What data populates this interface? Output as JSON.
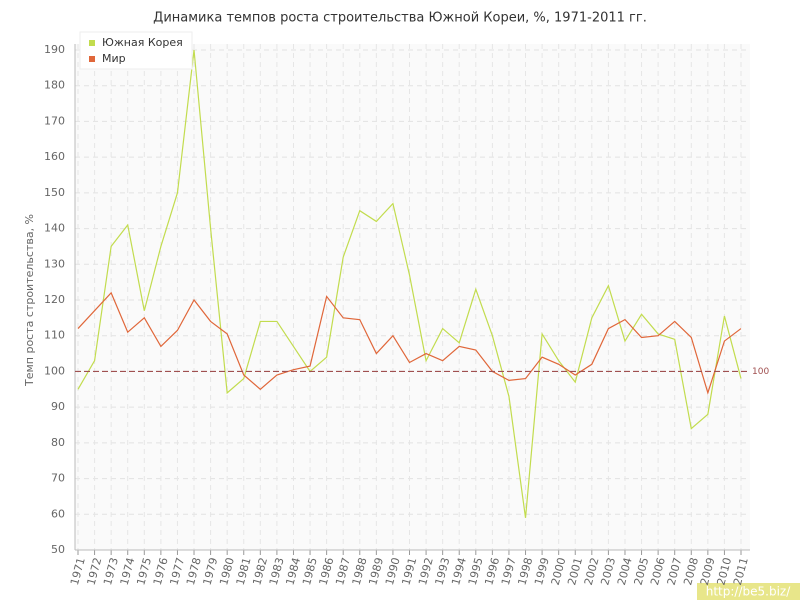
{
  "chart_data": {
    "type": "line",
    "title": "Динамика темпов роста строительства Южной Кореи, %, 1971-2011 гг.",
    "y_label": "Темп роста строительства, %",
    "categories": [
      "1971",
      "1972",
      "1973",
      "1974",
      "1975",
      "1976",
      "1977",
      "1978",
      "1979",
      "1980",
      "1981",
      "1982",
      "1983",
      "1984",
      "1985",
      "1986",
      "1987",
      "1988",
      "1989",
      "1990",
      "1991",
      "1992",
      "1993",
      "1994",
      "1995",
      "1996",
      "1997",
      "1998",
      "1999",
      "2000",
      "2001",
      "2002",
      "2003",
      "2004",
      "2005",
      "2006",
      "2007",
      "2008",
      "2009",
      "2010",
      "2011"
    ],
    "series": [
      {
        "name": "Южная Корея",
        "color": "#c2dc4e",
        "values": [
          95,
          103,
          135,
          141,
          117,
          135,
          150,
          190,
          140,
          94,
          98,
          114,
          114,
          107,
          100,
          104,
          132,
          145,
          142,
          147,
          127,
          103,
          112,
          108,
          123,
          110,
          93,
          59,
          110.5,
          103,
          97,
          115,
          124,
          108.5,
          116,
          110.5,
          109,
          84,
          88,
          115.5,
          98
        ]
      },
      {
        "name": "Мир",
        "color": "#e0673a",
        "values": [
          112,
          117,
          122,
          111,
          115,
          107,
          111.5,
          120,
          114,
          110.5,
          99,
          95,
          99,
          100.5,
          101.5,
          121,
          115,
          114.5,
          105,
          110,
          102.5,
          105,
          103,
          107,
          106,
          100,
          97.5,
          98,
          104,
          102,
          99,
          102,
          112,
          114.5,
          109.5,
          110,
          114,
          109.5,
          94,
          108.5,
          112
        ]
      }
    ],
    "ylim": [
      50,
      190
    ],
    "yticks": [
      50,
      60,
      70,
      80,
      90,
      100,
      110,
      120,
      130,
      140,
      150,
      160,
      170,
      180,
      190
    ],
    "grid": true,
    "legend": "top-left",
    "reference_line": 100,
    "reference_color": "#a05050",
    "watermark": "http://be5.biz/"
  }
}
